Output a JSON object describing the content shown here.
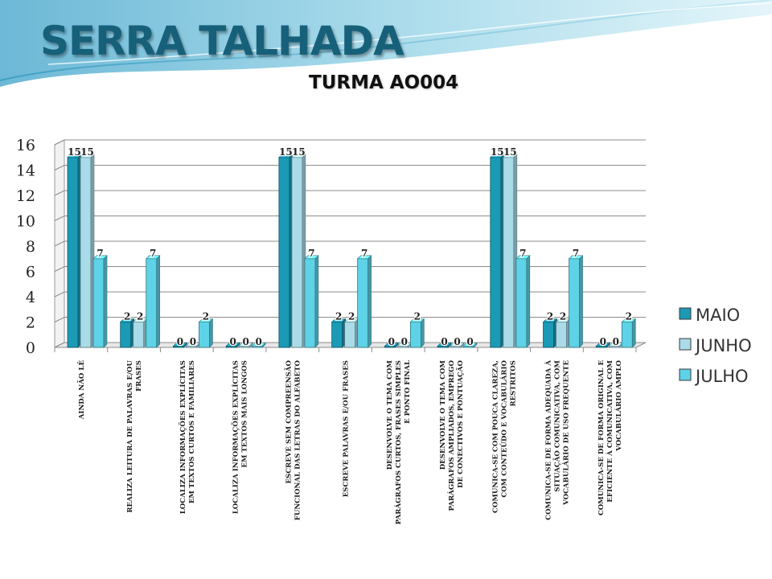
{
  "header": {
    "title": "SERRA TALHADA",
    "subtitle": "TURMA AO004"
  },
  "colors": {
    "background_wave": "#7fc3dc",
    "title": "#17607a",
    "series": [
      "#1a9ab5",
      "#a9dce8",
      "#5ed2e6"
    ]
  },
  "chart_data": {
    "type": "bar",
    "categories": [
      "AINDA NÃO LÊ",
      "REALIZA LEITURA DE PALAVRAS E/OU FRASES",
      "LOCALIZA INFORMAÇÕES EXPLÍCITAS EM TEXTOS CURTOS E FAMILIARES",
      "LOCALIZA INFORMAÇÕES EXPLÍCITAS EM TEXTOS MAIS LONGOS",
      "ESCREVE SEM COMPREENSÃO FUNCIONAL DAS LETRAS DO ALFABETO",
      "ESCREVE PALAVRAS E/OU FRASES",
      "DESENVOLVE O TEMA COM PARÁGRAFOS CURTOS, FRASES SIMPLES E PONTO FINAL",
      "DESENVOLVE O TEMA COM PARÁGRAFOS AMPLIADOS, EMPREGO DE CONECTIVOS E PONTUAÇÃO",
      "COMUNICA-SE COM POUCA CLAREZA, COM CONTEÚDO E VOCABULÁRIO RESTRITOS",
      "COMUNICA-SE DE FORMA ADEQUADA À SITUAÇÃO COMUNICATIVA, COM VOCABULÁRIO DE USO FREQUENTE",
      "COMUNICA-SE DE FORMA ORIGINAL E EFICIENTE À COMUNICATIVA, COM VOCABULÁRIO AMPLO"
    ],
    "category_lines": [
      [
        "AINDA NÃO LÊ"
      ],
      [
        "REALIZA LEITURA DE PALAVRAS E/OU",
        "FRASES"
      ],
      [
        "LOCALIZA INFORMAÇÕES EXPLÍCITAS",
        "EM TEXTOS CURTOS E FAMILIARES"
      ],
      [
        "LOCALIZA INFORMAÇÕES EXPLÍCITAS",
        "EM TEXTOS MAIS LONGOS"
      ],
      [
        "ESCREVE SEM COMPREENSÃO",
        "FUNCIONAL DAS LETRAS DO ALFABETO"
      ],
      [
        "ESCREVE PALAVRAS E/OU FRASES"
      ],
      [
        "DESENVOLVE O TEMA COM",
        "PARÁGRAFOS CURTOS, FRASES SIMPLES",
        "E PONTO FINAL"
      ],
      [
        "DESENVOLVE O TEMA COM",
        "PARÁGRAFOS AMPLIADOS, EMPREGO",
        "DE CONECTIVOS E PONTUAÇÃO"
      ],
      [
        "COMUNICA-SE COM POUCA CLAREZA,",
        "COM CONTEÚDO E VOCABULÁRIO",
        "RESTRITOS"
      ],
      [
        "COMUNICA-SE DE FORMA ADEQUADA À",
        "SITUAÇÃO COMUNICATIVA, COM",
        "VOCABULÁRIO DE USO FREQUENTE"
      ],
      [
        "COMUNICA-SE DE FORMA ORIGINAL E",
        "EFICIENTE À COMUNICATIVA, COM",
        "VOCABULÁRIO AMPLO"
      ]
    ],
    "series": [
      {
        "name": "MAIO",
        "values": [
          15,
          2,
          0,
          0,
          15,
          2,
          0,
          0,
          15,
          2,
          0
        ]
      },
      {
        "name": "JUNHO",
        "values": [
          15,
          2,
          0,
          0,
          15,
          2,
          0,
          0,
          15,
          2,
          0
        ]
      },
      {
        "name": "JULHO",
        "values": [
          7,
          7,
          2,
          0,
          7,
          7,
          2,
          0,
          7,
          7,
          2
        ]
      }
    ],
    "ylim": [
      0,
      16
    ],
    "yticks": [
      0,
      2,
      4,
      6,
      8,
      10,
      12,
      14,
      16
    ],
    "grid": true,
    "legend_position": "right",
    "data_labels": true
  }
}
